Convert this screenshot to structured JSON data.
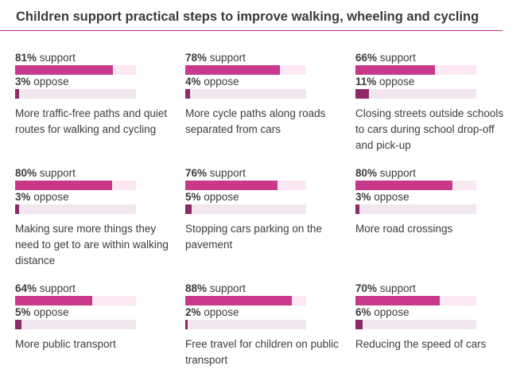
{
  "chart_data": {
    "type": "bar",
    "title": "Children support practical steps to improve walking, wheeling and cycling",
    "xlim": [
      0,
      100
    ],
    "unit": "%",
    "colors": {
      "support": "#c8398c",
      "support_track": "#fbe8f2",
      "oppose": "#8f2a69",
      "oppose_track": "#f3e7ef",
      "rule": "#b8357f"
    },
    "support_word": "support",
    "oppose_word": "oppose",
    "items": [
      {
        "label": "More traffic-free paths and quiet routes for walking and cycling",
        "support": 81,
        "oppose": 3
      },
      {
        "label": "More cycle paths along roads separated from cars",
        "support": 78,
        "oppose": 4
      },
      {
        "label": "Closing streets outside schools to cars during school drop-off and pick-up",
        "support": 66,
        "oppose": 11
      },
      {
        "label": "Making sure more things they need to get to are within walking distance",
        "support": 80,
        "oppose": 3
      },
      {
        "label": "Stopping cars parking on the pavement",
        "support": 76,
        "oppose": 5
      },
      {
        "label": "More road crossings",
        "support": 80,
        "oppose": 3
      },
      {
        "label": "More public transport",
        "support": 64,
        "oppose": 5
      },
      {
        "label": "Free travel for children on public transport",
        "support": 88,
        "oppose": 2
      },
      {
        "label": "Reducing the speed of cars",
        "support": 70,
        "oppose": 6
      }
    ]
  }
}
